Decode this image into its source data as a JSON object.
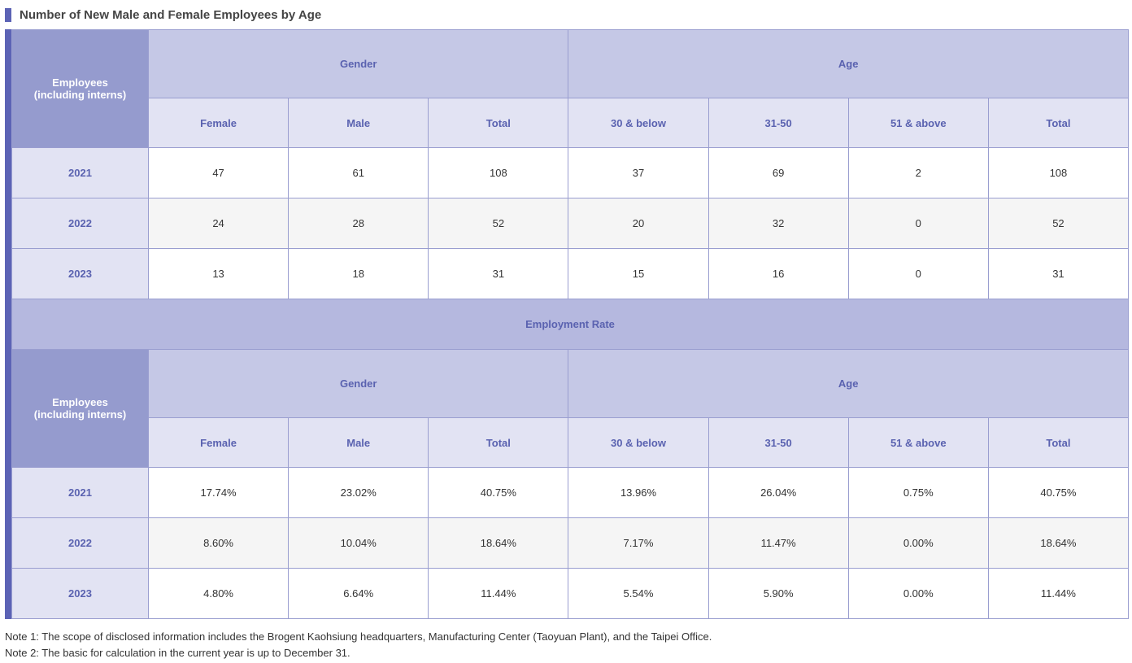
{
  "title": "Number of New Male and Female Employees by Age",
  "table": {
    "corner": "Employees\n(including interns)",
    "groups": [
      "Gender",
      "Age"
    ],
    "columns": [
      "Female",
      "Male",
      "Total",
      "30 & below",
      "31-50",
      "51 & above",
      "Total"
    ],
    "rows": [
      [
        "2021",
        47,
        61,
        108,
        37,
        69,
        2,
        108
      ],
      [
        "2022",
        24,
        28,
        52,
        20,
        32,
        0,
        52
      ],
      [
        "2023",
        13,
        18,
        31,
        15,
        16,
        0,
        31
      ]
    ]
  },
  "section_title": "Employment Rate",
  "table2": {
    "corner": "Employees\n(including interns)",
    "groups": [
      "Gender",
      "Age"
    ],
    "columns": [
      "Female",
      "Male",
      "Total",
      "30 & below",
      "31-50",
      "51 & above",
      "Total"
    ],
    "rows": [
      [
        "2021",
        "17.74%",
        "23.02%",
        "40.75%",
        "13.96%",
        "26.04%",
        "0.75%",
        "40.75%"
      ],
      [
        "2022",
        "8.60%",
        "10.04%",
        "18.64%",
        "7.17%",
        "11.47%",
        "0.00%",
        "18.64%"
      ],
      [
        "2023",
        "4.80%",
        "6.64%",
        "11.44%",
        "5.54%",
        "5.90%",
        "0.00%",
        "11.44%"
      ]
    ]
  },
  "notes": [
    "Note 1: The scope of disclosed information includes the Brogent Kaohsiung headquarters, Manufacturing Center (Taoyuan Plant), and the Taipei Office.",
    "Note 2: The basic for calculation in the current year is up to December 31."
  ]
}
